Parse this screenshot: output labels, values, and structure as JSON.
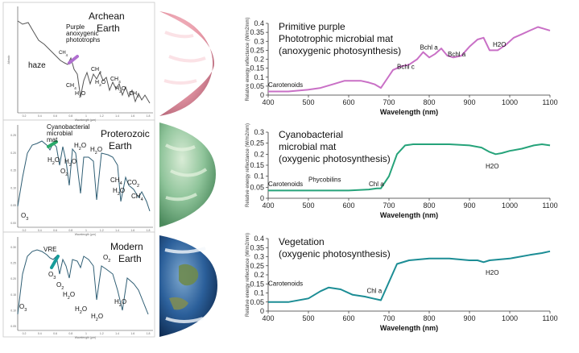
{
  "left_panels": [
    {
      "title_lines": [
        "Archean",
        "Earth"
      ],
      "labels": [
        "haze",
        "CH4",
        "CH4",
        "H2O",
        "CH4",
        "H2O",
        "CH4",
        "H2O",
        "CH4"
      ],
      "highlight_lines": [
        "Purple",
        "anoxygenic",
        "phototrophs"
      ],
      "highlight_color": "#b06fd0",
      "line_color": "#555555",
      "xlabel": "Wavelength (μm)",
      "ylabel": "Albedo",
      "xticks": [
        "0.2",
        "0.4",
        "0.6",
        "0.8",
        "1",
        "1.2",
        "1.4",
        "1.6",
        "1.8"
      ],
      "yticks": []
    },
    {
      "title_lines": [
        "Proterozoic",
        "Earth"
      ],
      "labels": [
        "O3",
        "H2O",
        "O2",
        "H2O",
        "H2O",
        "H2O",
        "CH4",
        "H2O",
        "CO2",
        "CH4"
      ],
      "highlight_lines": [
        "Cyanobacterial",
        "microbial",
        "mat"
      ],
      "highlight_color": "#2aaa6a",
      "line_color": "#2f5e74",
      "xlabel": "Wavelength (μm)",
      "ylabel": "",
      "xticks": [
        "0.2",
        "0.4",
        "0.6",
        "0.8",
        "1",
        "1.2",
        "1.4",
        "1.6",
        "1.8"
      ],
      "yticks": [
        "0.25",
        "0.20",
        "0.15",
        "0.10",
        "0.05",
        "0.00"
      ]
    },
    {
      "title_lines": [
        "Modern",
        "Earth"
      ],
      "labels": [
        "O3",
        "O3",
        "O2",
        "H2O",
        "O2",
        "H2O",
        "H2O",
        "H2O"
      ],
      "highlight_lines": [
        "VRE"
      ],
      "highlight_color": "#169c9a",
      "line_color": "#2f5e74",
      "xlabel": "Wavelength (μm)",
      "ylabel": "",
      "xticks": [
        "0.2",
        "0.4",
        "0.6",
        "0.8",
        "1",
        "1.2",
        "1.4",
        "1.6",
        "1.8"
      ],
      "yticks": [
        "0.30",
        "0.25",
        "0.20",
        "0.15",
        "0.10",
        "0.05"
      ]
    }
  ],
  "colors": {
    "purple": "#c970c6",
    "green": "#26a37a",
    "teal": "#1c8d95",
    "archean_planet": "#e89aa8",
    "proterozoic_planet": "#8fc49a",
    "modern_ocean": "#2b5f9a"
  },
  "chart_data": [
    {
      "type": "line",
      "title_lines": [
        "Primitive purple",
        "Phototrophic microbial mat",
        "(anoxygenic photosynthesis)"
      ],
      "xlabel": "Wavelength (nm)",
      "ylabel": "Relative energy reflectance (W/m2/nm)",
      "xlim": [
        400,
        1100
      ],
      "ylim": [
        0,
        0.4
      ],
      "xticks": [
        400,
        500,
        600,
        700,
        800,
        900,
        1000,
        1100
      ],
      "yticks": [
        0,
        0.05,
        0.1,
        0.15,
        0.2,
        0.25,
        0.3,
        0.35,
        0.4
      ],
      "color": "#c970c6",
      "x": [
        400,
        450,
        500,
        530,
        560,
        590,
        610,
        630,
        650,
        665,
        680,
        695,
        710,
        730,
        750,
        770,
        785,
        800,
        815,
        830,
        845,
        860,
        880,
        900,
        920,
        935,
        950,
        970,
        990,
        1010,
        1030,
        1050,
        1070,
        1085,
        1100
      ],
      "y": [
        0.02,
        0.02,
        0.03,
        0.04,
        0.06,
        0.08,
        0.08,
        0.08,
        0.07,
        0.06,
        0.04,
        0.09,
        0.14,
        0.16,
        0.17,
        0.2,
        0.24,
        0.21,
        0.23,
        0.26,
        0.22,
        0.21,
        0.22,
        0.27,
        0.31,
        0.32,
        0.25,
        0.25,
        0.28,
        0.32,
        0.34,
        0.36,
        0.38,
        0.37,
        0.36
      ],
      "annotations": [
        {
          "text": "Carotenoids",
          "x": 400,
          "y": 0.045
        },
        {
          "text": "Bchl c",
          "x": 720,
          "y": 0.145
        },
        {
          "text": "Bchl a",
          "x": 777,
          "y": 0.255
        },
        {
          "text": "Bchl a",
          "x": 846,
          "y": 0.215
        },
        {
          "text": "H2O",
          "x": 958,
          "y": 0.27
        }
      ]
    },
    {
      "type": "line",
      "title_lines": [
        "Cyanobacterial",
        "microbial mat",
        "(oxygenic photosynthesis)"
      ],
      "xlabel": "Wavelength (nm)",
      "ylabel": "Relative energy reflectance (W/m2/nm)",
      "xlim": [
        400,
        1100
      ],
      "ylim": [
        0,
        0.3
      ],
      "xticks": [
        400,
        500,
        600,
        700,
        800,
        900,
        1000,
        1100
      ],
      "yticks": [
        0,
        0.05,
        0.1,
        0.15,
        0.2,
        0.25,
        0.3
      ],
      "color": "#26a37a",
      "x": [
        400,
        450,
        500,
        550,
        600,
        650,
        670,
        680,
        700,
        720,
        740,
        760,
        800,
        850,
        900,
        930,
        950,
        965,
        980,
        1000,
        1030,
        1060,
        1080,
        1100
      ],
      "y": [
        0.035,
        0.035,
        0.035,
        0.035,
        0.035,
        0.04,
        0.045,
        0.045,
        0.1,
        0.2,
        0.24,
        0.245,
        0.245,
        0.245,
        0.24,
        0.23,
        0.21,
        0.2,
        0.205,
        0.215,
        0.225,
        0.24,
        0.245,
        0.24
      ],
      "annotations": [
        {
          "text": "Carotenoids",
          "x": 400,
          "y": 0.055
        },
        {
          "text": "Phycobilins",
          "x": 500,
          "y": 0.075
        },
        {
          "text": "Chl a",
          "x": 650,
          "y": 0.055
        },
        {
          "text": "H2O",
          "x": 940,
          "y": 0.135
        }
      ]
    },
    {
      "type": "line",
      "title_lines": [
        "Vegetation",
        "(oxygenic photosynthesis)"
      ],
      "xlabel": "Wavelength (nm)",
      "ylabel": "Relative energy reflectance (W/m2/nm)",
      "xlim": [
        400,
        1100
      ],
      "ylim": [
        0,
        0.4
      ],
      "xticks": [
        400,
        500,
        600,
        700,
        800,
        900,
        1000,
        1100
      ],
      "yticks": [
        0,
        0.05,
        0.1,
        0.15,
        0.2,
        0.25,
        0.3,
        0.35,
        0.4
      ],
      "color": "#1c8d95",
      "x": [
        400,
        450,
        500,
        530,
        550,
        580,
        610,
        640,
        660,
        680,
        700,
        720,
        750,
        800,
        850,
        900,
        920,
        935,
        950,
        1000,
        1050,
        1080,
        1100
      ],
      "y": [
        0.05,
        0.05,
        0.07,
        0.11,
        0.13,
        0.12,
        0.09,
        0.08,
        0.07,
        0.06,
        0.16,
        0.26,
        0.28,
        0.29,
        0.29,
        0.28,
        0.28,
        0.27,
        0.28,
        0.29,
        0.31,
        0.32,
        0.33
      ],
      "annotations": [
        {
          "text": "Carotenoids",
          "x": 400,
          "y": 0.14
        },
        {
          "text": "Chl a",
          "x": 645,
          "y": 0.1
        },
        {
          "text": "H2O",
          "x": 940,
          "y": 0.2
        }
      ]
    }
  ]
}
